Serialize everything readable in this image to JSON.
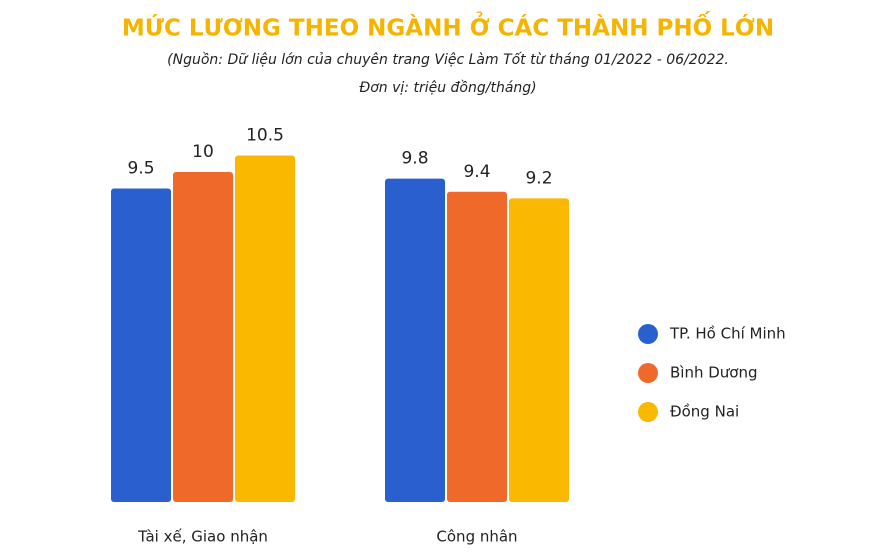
{
  "chart_data": {
    "type": "bar",
    "title": "MỨC LƯƠNG THEO NGÀNH Ở CÁC THÀNH PHỐ LỚN",
    "subtitle": [
      "(Nguồn: Dữ liệu lớn của chuyên trang Việc Làm Tốt từ tháng 01/2022 - 06/2022.",
      "Đơn vị: triệu đồng/tháng)"
    ],
    "categories": [
      "Tài xế, Giao nhận",
      "Công nhân"
    ],
    "series": [
      {
        "name": "TP. Hồ Chí Minh",
        "color": "#2a5fd0",
        "values": [
          9.5,
          9.8
        ]
      },
      {
        "name": "Bình Dương",
        "color": "#ef6a2a",
        "values": [
          10,
          9.4
        ]
      },
      {
        "name": "Đồng Nai",
        "color": "#fbb800",
        "values": [
          10.5,
          9.2
        ]
      }
    ],
    "ylim": [
      0,
      13
    ],
    "legend": "right"
  }
}
